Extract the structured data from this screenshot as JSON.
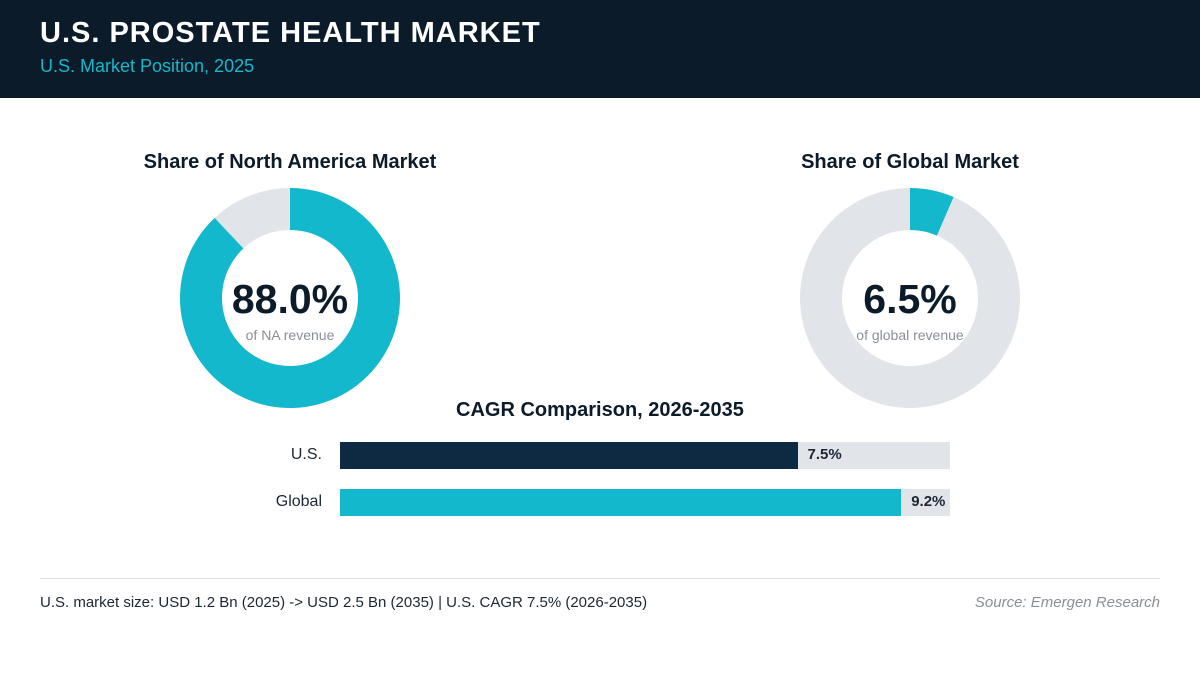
{
  "header": {
    "title": "U.S. PROSTATE HEALTH MARKET",
    "subtitle": "U.S. Market Position, 2025"
  },
  "colors": {
    "navy": "#0b1b29",
    "bar_navy": "#0e2a42",
    "teal": "#14b8cc",
    "track": "#e1e5ea"
  },
  "chart_data": [
    {
      "type": "pie",
      "title": "Share of North America Market",
      "center_value": "88.0%",
      "center_caption": "of NA revenue",
      "slices": [
        {
          "label": "U.S.",
          "value": 88.0,
          "color": "#14b8cc"
        },
        {
          "label": "Rest",
          "value": 12.0,
          "color": "#e1e5ea"
        }
      ]
    },
    {
      "type": "pie",
      "title": "Share of Global Market",
      "center_value": "6.5%",
      "center_caption": "of global revenue",
      "slices": [
        {
          "label": "U.S.",
          "value": 6.5,
          "color": "#14b8cc"
        },
        {
          "label": "Rest",
          "value": 93.5,
          "color": "#e1e5ea"
        }
      ]
    },
    {
      "type": "bar",
      "title": "CAGR Comparison, 2026-2035",
      "categories": [
        "U.S.",
        "Global"
      ],
      "values": [
        7.5,
        9.2
      ],
      "value_labels": [
        "7.5%",
        "9.2%"
      ],
      "colors": [
        "#0e2a42",
        "#14b8cc"
      ],
      "xlim": [
        0,
        10
      ]
    }
  ],
  "footer": {
    "note": "U.S. market size: USD 1.2 Bn (2025) -> USD 2.5 Bn (2035)  |  U.S. CAGR 7.5% (2026-2035)",
    "source": "Source: Emergen Research"
  }
}
